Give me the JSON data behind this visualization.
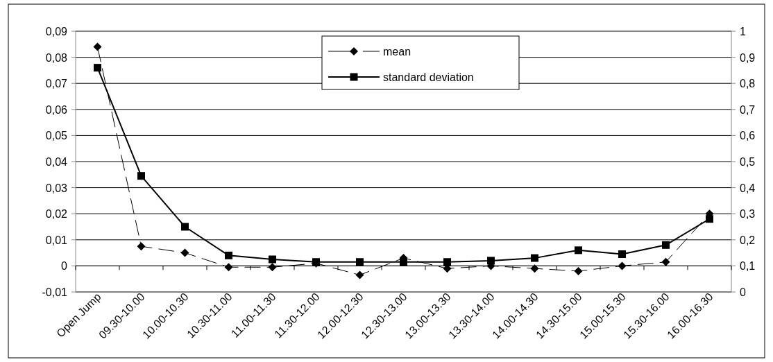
{
  "chart_data": {
    "type": "line",
    "categories": [
      "Open Jump",
      "09.30-10.00",
      "10.00-10.30",
      "10.30-11.00",
      "11.00-11.30",
      "11.30-12.00",
      "12.00-12.30",
      "12.30-13.00",
      "13.00-13.30",
      "13.30-14.00",
      "14.00-14.30",
      "14.30-15.00",
      "15.00-15.30",
      "15.30-16.00",
      "16.00-16.30"
    ],
    "series": [
      {
        "name": "mean",
        "color": "#000000",
        "marker": "diamond",
        "line_style": "dashed",
        "values": [
          0.084,
          0.0075,
          0.005,
          -0.0005,
          -0.0005,
          0.001,
          -0.0035,
          0.003,
          -0.001,
          0,
          -0.001,
          -0.002,
          0,
          0.0015,
          0.02
        ]
      },
      {
        "name": "standard deviation",
        "color": "#000000",
        "marker": "square",
        "line_style": "solid",
        "axis": "y2",
        "values": [
          0.86,
          0.445,
          0.25,
          0.14,
          0.125,
          0.115,
          0.115,
          0.115,
          0.115,
          0.12,
          0.13,
          0.16,
          0.145,
          0.18,
          0.28
        ]
      }
    ],
    "ylim": [
      -0.01,
      0.09
    ],
    "yticks": [
      {
        "value": -0.01,
        "label": "-0,01"
      },
      {
        "value": 0,
        "label": "0"
      },
      {
        "value": 0.01,
        "label": "0,01"
      },
      {
        "value": 0.02,
        "label": "0,02"
      },
      {
        "value": 0.03,
        "label": "0,03"
      },
      {
        "value": 0.04,
        "label": "0,04"
      },
      {
        "value": 0.05,
        "label": "0,05"
      },
      {
        "value": 0.06,
        "label": "0,06"
      },
      {
        "value": 0.07,
        "label": "0,07"
      },
      {
        "value": 0.08,
        "label": "0,08"
      },
      {
        "value": 0.09,
        "label": "0,09"
      }
    ],
    "y2lim": [
      0,
      1
    ],
    "y2ticks": [
      0,
      {
        "value": 0.1,
        "label": "0,1"
      },
      {
        "value": 0.2,
        "label": "0,2"
      },
      {
        "value": 0.3,
        "label": "0,3"
      },
      {
        "value": 0.4,
        "label": "0,4"
      },
      {
        "value": 0.5,
        "label": "0,5"
      },
      {
        "value": 0.6,
        "label": "0,6"
      },
      {
        "value": 0.7,
        "label": "0,7"
      },
      {
        "value": 0.8,
        "label": "0,8"
      },
      {
        "value": 0.9,
        "label": "0,9"
      },
      1
    ],
    "grid": "y",
    "legend": "top"
  }
}
